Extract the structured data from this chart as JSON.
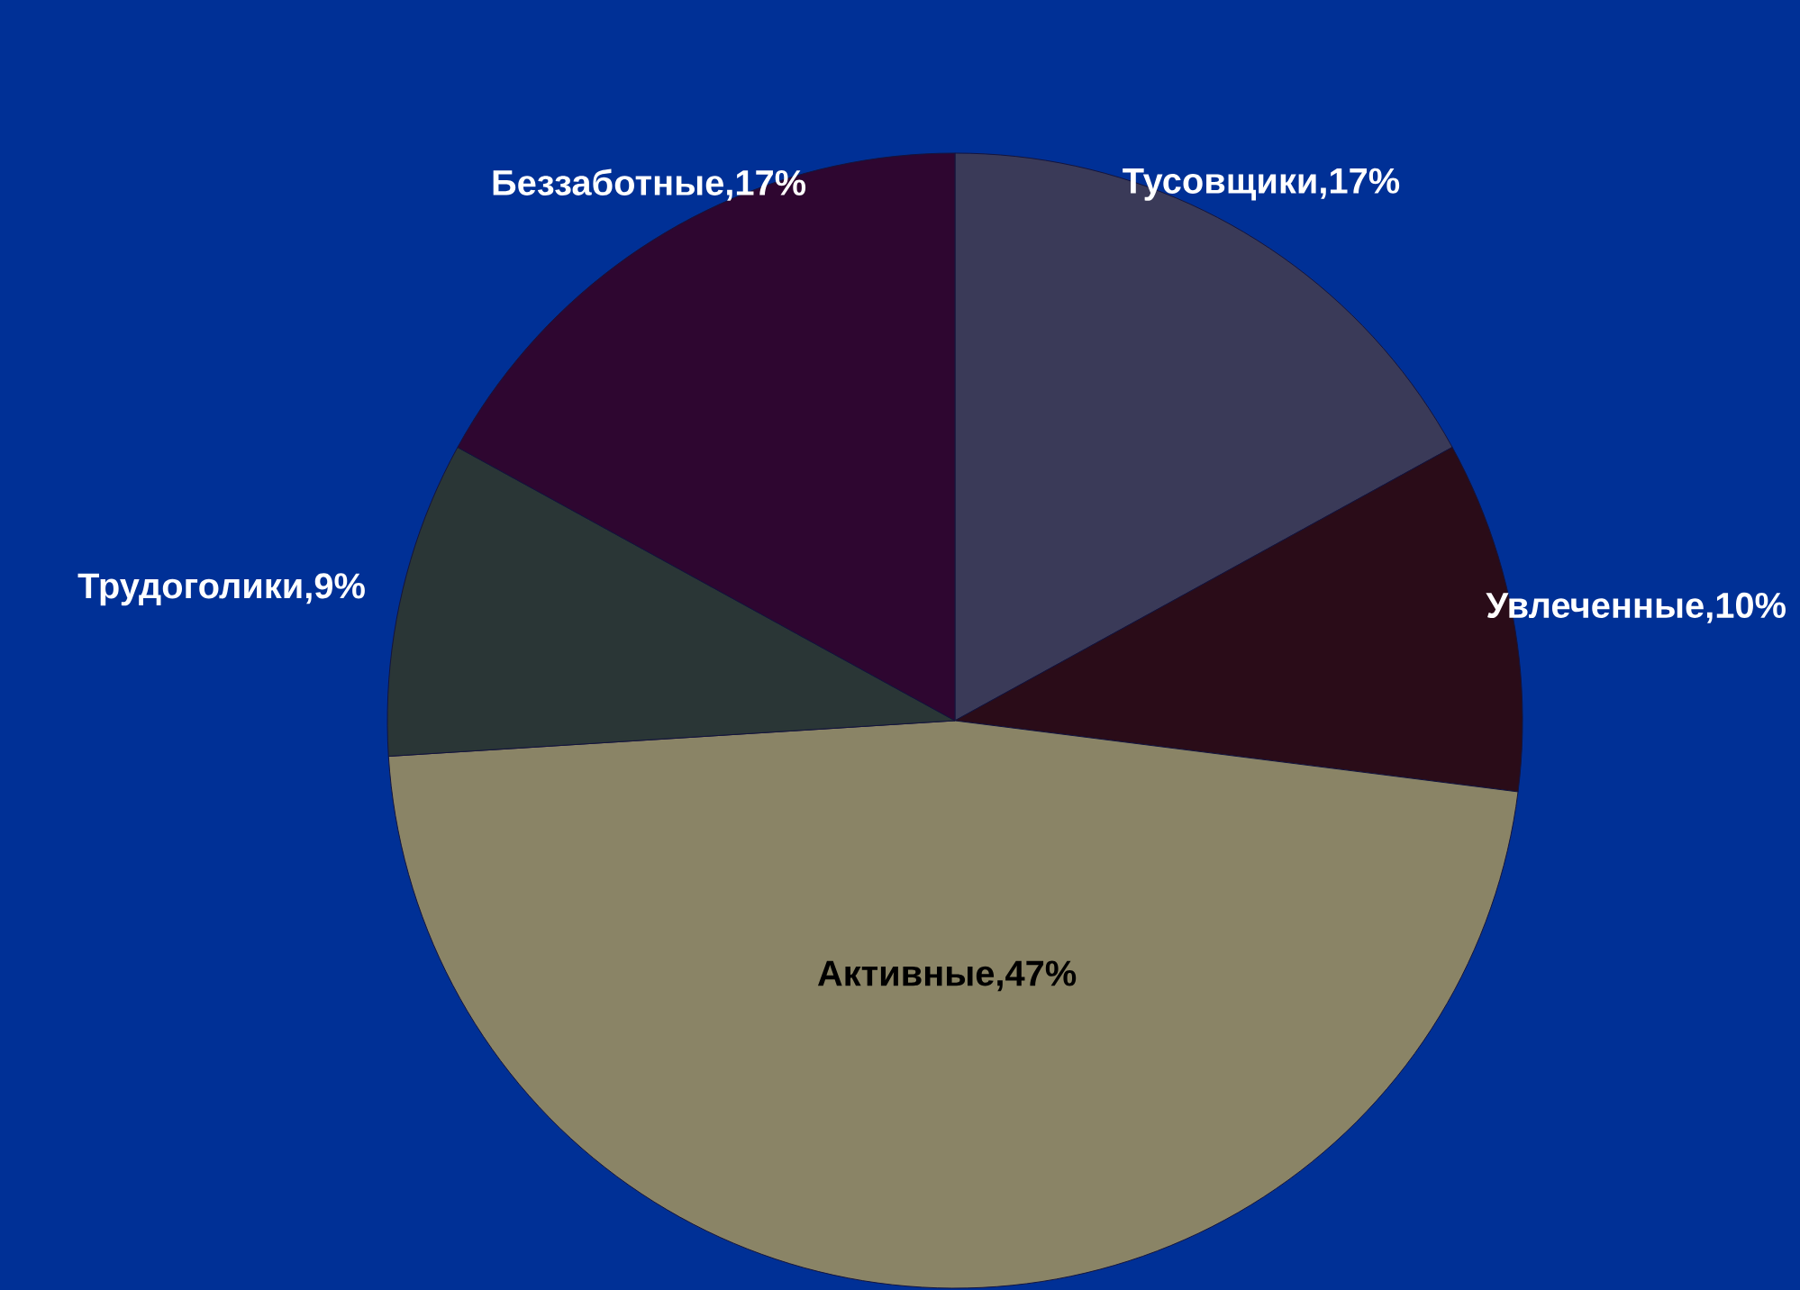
{
  "chart_data": {
    "type": "pie",
    "categories": [
      "Тусовщики,17%",
      "Увлеченные,10%",
      "Активные,47%",
      "Трудоголики,9%",
      "Беззаботные,17%"
    ],
    "values": [
      17,
      10,
      47,
      9,
      17
    ],
    "colors": [
      "#3a3a58",
      "#2a0c18",
      "#8a8466",
      "#2a3636",
      "#2e0630"
    ]
  }
}
